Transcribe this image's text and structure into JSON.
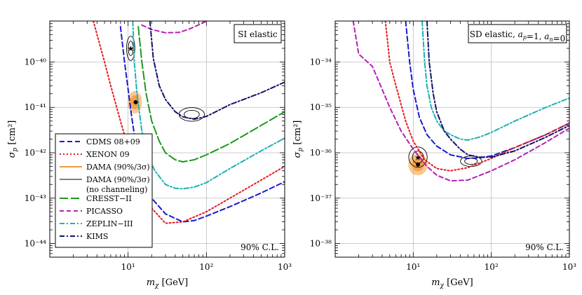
{
  "chart_data": [
    {
      "type": "line",
      "panel": "left",
      "title": "SI elastic",
      "annotation": "90% C.L.",
      "xlabel": "m_χ [GeV]",
      "ylabel": "σ_p [cm²]",
      "xscale": "log",
      "yscale": "log",
      "xlim": [
        1,
        1000
      ],
      "ylim": [
        5e-45,
        8e-40
      ],
      "x_ticks": [
        {
          "value": 10,
          "label": "10¹"
        },
        {
          "value": 100,
          "label": "10²"
        },
        {
          "value": 1000,
          "label": "10³"
        }
      ],
      "y_ticks": [
        {
          "value": 1e-44,
          "label": "10⁻⁴⁴"
        },
        {
          "value": 1e-43,
          "label": "10⁻⁴³"
        },
        {
          "value": 1e-42,
          "label": "10⁻⁴²"
        },
        {
          "value": 1e-41,
          "label": "10⁻⁴¹"
        },
        {
          "value": 1e-40,
          "label": "10⁻⁴⁰"
        }
      ],
      "grid": true,
      "legend_position": "left",
      "legend": [
        {
          "label": "CDMS 08+09",
          "color": "#1a1acd",
          "dash": "7 4",
          "kind": "line"
        },
        {
          "label": "XENON 09",
          "color": "#e8191e",
          "dash": "2 3",
          "kind": "line"
        },
        {
          "label": "DAMA (90%/3σ)",
          "color": "#f59a3c",
          "dash": "",
          "kind": "line",
          "text_color": "#f59a3c"
        },
        {
          "label": "DAMA (90%/3σ)",
          "color": "#000000",
          "dash": "",
          "kind": "thinline"
        },
        {
          "label": "(no channeling)",
          "color": "",
          "dash": "",
          "kind": "text"
        },
        {
          "label": "CRESST−II",
          "color": "#1b9a1b",
          "dash": "12 4",
          "kind": "line"
        },
        {
          "label": "PICASSO",
          "color": "#b520b5",
          "dash": "6 4",
          "kind": "line"
        },
        {
          "label": "ZEPLIN−III",
          "color": "#1db1b1",
          "dash": "7 3 2 3",
          "kind": "line"
        },
        {
          "label": "KIMS",
          "color": "#12126e",
          "dash": "7 3 2 3",
          "kind": "line"
        }
      ],
      "series": [
        {
          "name": "CDMS 08+09",
          "color": "#1a1acd",
          "dash": "7 4",
          "x": [
            8,
            9,
            10,
            11,
            13,
            16,
            20,
            30,
            50,
            70,
            100,
            200,
            500,
            1000
          ],
          "y": [
            6e-40,
            1e-40,
            2.5e-41,
            7e-42,
            1e-42,
            2.5e-43,
            1e-43,
            4.5e-44,
            3e-44,
            3.2e-44,
            4e-44,
            6.5e-44,
            1.3e-43,
            2.3e-43
          ]
        },
        {
          "name": "XENON 09",
          "color": "#e8191e",
          "dash": "2 3",
          "x": [
            3.6,
            5,
            6,
            8,
            10,
            14,
            20,
            30,
            50,
            100,
            200,
            500,
            1000
          ],
          "y": [
            8e-40,
            1e-40,
            3e-41,
            5e-42,
            1.3e-42,
            2.5e-43,
            6e-44,
            2.8e-44,
            3e-44,
            5e-44,
            1e-43,
            2.5e-43,
            5e-43
          ]
        },
        {
          "name": "CRESST−II",
          "color": "#1b9a1b",
          "dash": "12 4",
          "x": [
            13.5,
            15,
            17,
            20,
            25,
            30,
            40,
            50,
            70,
            100,
            200,
            500,
            1000
          ],
          "y": [
            6e-40,
            1e-40,
            2e-41,
            5e-42,
            1.8e-42,
            1e-42,
            7e-43,
            6.3e-43,
            7e-43,
            9e-43,
            1.6e-42,
            4e-42,
            8e-42
          ]
        },
        {
          "name": "PICASSO",
          "color": "#b520b5",
          "dash": "6 4",
          "x": [
            15,
            20,
            30,
            45,
            60,
            80,
            100
          ],
          "y": [
            6.5e-40,
            5.2e-40,
            4.4e-40,
            4.5e-40,
            5.3e-40,
            6.6e-40,
            8e-40
          ]
        },
        {
          "name": "ZEPLIN−III",
          "color": "#1db1b1",
          "dash": "7 3 2 3",
          "x": [
            11.5,
            12,
            13,
            15,
            18,
            22,
            30,
            40,
            50,
            70,
            100,
            200,
            500,
            1000
          ],
          "y": [
            8e-40,
            1e-40,
            2e-41,
            3e-42,
            8e-43,
            4e-43,
            2e-43,
            1.65e-43,
            1.6e-43,
            1.75e-43,
            2.2e-43,
            4.5e-43,
            1.1e-42,
            2.1e-42
          ]
        },
        {
          "name": "KIMS",
          "color": "#12126e",
          "dash": "7 3 2 3",
          "x": [
            19,
            21,
            25,
            30,
            40,
            50,
            70,
            100,
            200,
            500,
            1000
          ],
          "y": [
            8e-40,
            1.2e-40,
            3e-41,
            1.5e-41,
            8e-42,
            6.2e-42,
            5.5e-42,
            6.3e-42,
            1.15e-41,
            2.1e-41,
            3.6e-41
          ]
        }
      ],
      "regions": [
        {
          "name": "DAMA (90%/3σ)",
          "kind": "filled",
          "color": "#f59a3c",
          "center": [
            12.2,
            1.3e-41
          ],
          "x_range": [
            9.5,
            14.5
          ],
          "y_range": [
            7e-42,
            2.2e-41
          ]
        },
        {
          "name": "DAMA (90%/3σ) (no channeling) low mass",
          "kind": "contour",
          "color": "#000000",
          "center": [
            10.8,
            2e-40
          ],
          "x_range": [
            9.8,
            12.5
          ],
          "y_range": [
            1.1e-40,
            3.8e-40
          ]
        },
        {
          "name": "DAMA (90%/3σ) (no channeling) high mass",
          "kind": "contour",
          "color": "#000000",
          "center": [
            65,
            7e-42
          ],
          "x_range": [
            45,
            95
          ],
          "y_range": [
            5e-42,
            1e-41
          ]
        }
      ],
      "best_fit_points": [
        {
          "x": 12.5,
          "y": 1.3e-41,
          "marker": "dot"
        },
        {
          "x": 10.8,
          "y": 2e-40,
          "marker": "star"
        }
      ]
    },
    {
      "type": "line",
      "panel": "right",
      "title": "SD elastic, a_p=1, a_n=0",
      "annotation": "90% C.L.",
      "xlabel": "m_χ [GeV]",
      "ylabel": "σ_p [cm²]",
      "xscale": "log",
      "yscale": "log",
      "xlim": [
        1,
        1000
      ],
      "ylim": [
        5e-39,
        8e-34
      ],
      "x_ticks": [
        {
          "value": 10,
          "label": "10¹"
        },
        {
          "value": 100,
          "label": "10²"
        },
        {
          "value": 1000,
          "label": "10³"
        }
      ],
      "y_ticks": [
        {
          "value": 1e-38,
          "label": "10⁻³⁸"
        },
        {
          "value": 1e-37,
          "label": "10⁻³⁷"
        },
        {
          "value": 1e-36,
          "label": "10⁻³⁶"
        },
        {
          "value": 1e-35,
          "label": "10⁻³⁵"
        },
        {
          "value": 1e-34,
          "label": "10⁻³⁴"
        }
      ],
      "grid": true,
      "series": [
        {
          "name": "CDMS 08+09",
          "color": "#1a1acd",
          "dash": "7 4",
          "x": [
            8,
            9,
            10,
            12,
            15,
            20,
            30,
            50,
            70,
            100,
            200,
            500,
            1000
          ],
          "y": [
            8e-34,
            1e-34,
            2.5e-35,
            6e-36,
            2.5e-36,
            1.4e-36,
            9e-37,
            7.5e-37,
            7.7e-37,
            8.5e-37,
            1.3e-36,
            2.5e-36,
            4.5e-36
          ]
        },
        {
          "name": "XENON 09",
          "color": "#e8191e",
          "dash": "2 3",
          "x": [
            4.4,
            5,
            6,
            8,
            10,
            14,
            20,
            30,
            50,
            100,
            200,
            500,
            1000
          ],
          "y": [
            8e-34,
            1e-34,
            3e-35,
            5e-36,
            1.8e-36,
            7e-37,
            4.5e-37,
            4e-37,
            4.7e-37,
            7.5e-37,
            1.3e-36,
            2.5e-36,
            4.5e-36
          ]
        },
        {
          "name": "PICASSO",
          "color": "#b520b5",
          "dash": "6 4",
          "x": [
            1.7,
            2,
            3,
            4,
            5,
            7,
            10,
            15,
            20,
            30,
            50,
            100,
            200,
            500,
            1000
          ],
          "y": [
            8e-34,
            1.5e-34,
            8e-35,
            2.5e-35,
            1e-35,
            3e-36,
            1.2e-36,
            5e-37,
            3.2e-37,
            2.4e-37,
            2.5e-37,
            4e-37,
            7e-37,
            1.7e-36,
            3.5e-36
          ]
        },
        {
          "name": "ZEPLIN−III",
          "color": "#1db1b1",
          "dash": "7 3 2 3",
          "x": [
            13,
            14,
            15,
            17,
            20,
            25,
            30,
            40,
            50,
            70,
            100,
            200,
            500,
            1000
          ],
          "y": [
            8e-34,
            1e-34,
            3e-35,
            1e-35,
            5e-36,
            3e-36,
            2.5e-36,
            2e-36,
            1.9e-36,
            2.2e-36,
            2.8e-36,
            5e-36,
            1e-35,
            1.6e-35
          ]
        },
        {
          "name": "KIMS",
          "color": "#12126e",
          "dash": "7 3 2 3",
          "x": [
            15,
            16,
            18,
            20,
            25,
            30,
            40,
            50,
            70,
            100,
            200,
            500,
            1000
          ],
          "y": [
            8e-34,
            1e-34,
            2e-35,
            8e-36,
            3e-36,
            2e-36,
            1.2e-36,
            9e-37,
            8e-37,
            8e-37,
            1.1e-36,
            2.2e-36,
            4e-36
          ]
        }
      ],
      "regions": [
        {
          "name": "DAMA (90%/3σ)",
          "kind": "filled",
          "color": "#f59a3c",
          "center": [
            11.5,
            5.5e-37
          ],
          "x_range": [
            8.5,
            15
          ],
          "y_range": [
            3e-37,
            9e-37
          ]
        },
        {
          "name": "DAMA (90%/3σ) (no channeling) low mass",
          "kind": "contour",
          "color": "#000000",
          "center": [
            11.5,
            8e-37
          ],
          "x_range": [
            9,
            15.5
          ],
          "y_range": [
            5e-37,
            1.4e-36
          ]
        },
        {
          "name": "DAMA (90%/3σ) (no channeling) high mass",
          "kind": "contour",
          "color": "#000000",
          "center": [
            55,
            6.5e-37
          ],
          "x_range": [
            40,
            75
          ],
          "y_range": [
            5e-37,
            8.5e-37
          ]
        }
      ],
      "best_fit_points": [
        {
          "x": 11.5,
          "y": 5.5e-37,
          "marker": "dot"
        },
        {
          "x": 11.5,
          "y": 8e-37,
          "marker": "star"
        }
      ]
    }
  ]
}
